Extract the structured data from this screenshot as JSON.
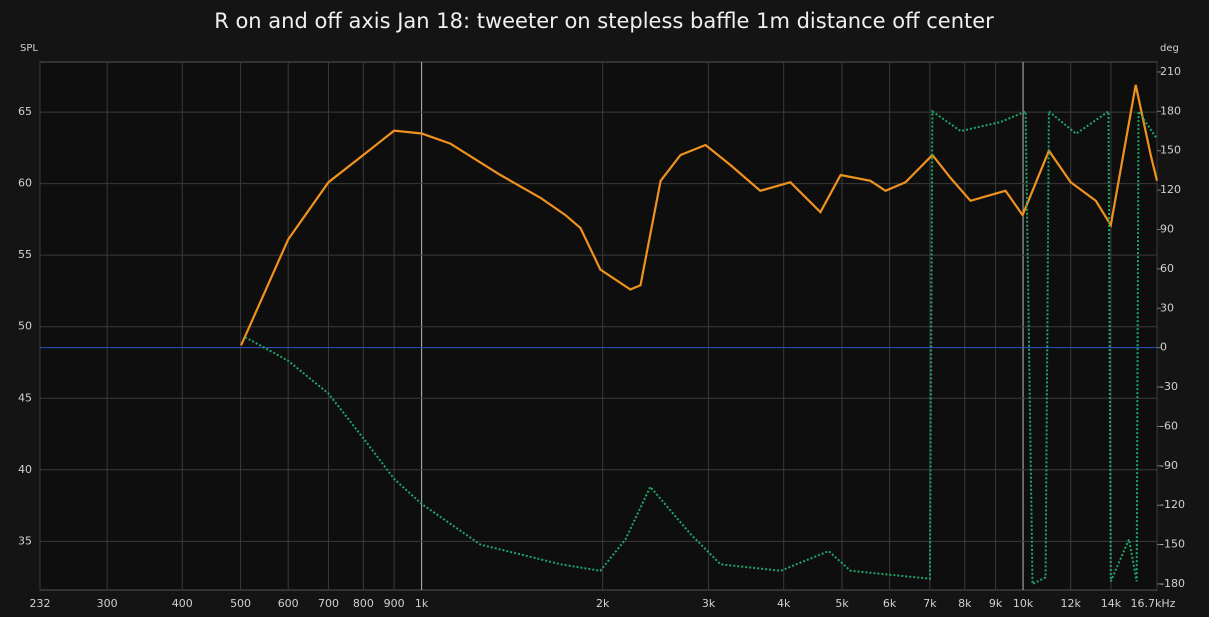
{
  "chart_data": {
    "type": "line",
    "title": "R on and off axis Jan 18: tweeter on stepless baffle 1m distance off center",
    "y_label": "SPL",
    "y2_label": "deg",
    "log_x": true,
    "grid": true,
    "xlim": [
      232,
      16700
    ],
    "xticks": [
      232,
      300,
      400,
      500,
      600,
      700,
      800,
      900,
      {
        "value": 1000,
        "label": "1k"
      },
      {
        "value": 2000,
        "label": "2k"
      },
      {
        "value": 3000,
        "label": "3k"
      },
      {
        "value": 4000,
        "label": "4k"
      },
      {
        "value": 5000,
        "label": "5k"
      },
      {
        "value": 6000,
        "label": "6k"
      },
      {
        "value": 7000,
        "label": "7k"
      },
      {
        "value": 8000,
        "label": "8k"
      },
      {
        "value": 9000,
        "label": "9k"
      },
      {
        "value": 10000,
        "label": "10k"
      },
      {
        "value": 12000,
        "label": "12k"
      },
      {
        "value": 14000,
        "label": "14k"
      },
      {
        "value": 16700,
        "label": "16.7kHz"
      }
    ],
    "ylim": [
      31.6,
      68.5
    ],
    "yticks": [
      35,
      40,
      45,
      50,
      55,
      60,
      65
    ],
    "y2lim": [
      -184.6,
      217.6
    ],
    "y2ticks": [
      -180,
      -150,
      -120,
      -90,
      -60,
      -30,
      0,
      30,
      60,
      90,
      120,
      150,
      180,
      210
    ],
    "series": [
      {
        "color": "#f0921e",
        "x": [
          501,
          600,
          700,
          800,
          900,
          1000,
          1116,
          1352,
          1577,
          1734,
          1837,
          1982,
          2224,
          2312,
          2497,
          2694,
          2965,
          3261,
          3657,
          4104,
          4604,
          4974,
          5575,
          5906,
          6378,
          7067,
          7574,
          8177,
          8826,
          9350,
          9983,
          11040,
          12000,
          13210,
          13990,
          15390,
          16300,
          16700
        ],
        "values": [
          48.7,
          56.1,
          60.1,
          62.0,
          63.7,
          63.5,
          62.8,
          60.6,
          59.0,
          57.8,
          56.9,
          54.0,
          52.6,
          52.9,
          60.2,
          62.0,
          62.7,
          61.3,
          59.5,
          60.1,
          58.0,
          60.6,
          60.2,
          59.5,
          60.1,
          62.0,
          60.4,
          58.8,
          59.2,
          59.5,
          57.8,
          62.3,
          60.1,
          58.8,
          57.1,
          66.9,
          62.0,
          60.2
        ]
      },
      {
        "color": "#1fa66a",
        "axis": "y2",
        "x": [
          509,
          600,
          700,
          800,
          900,
          1000,
          1253,
          1704,
          1982,
          2183,
          2400,
          2800,
          3140,
          3953,
          4752,
          5166,
          7000,
          7067,
          7875,
          9189,
          10100,
          10370,
          10900,
          11040,
          12250,
          13870,
          13990,
          15000,
          15450,
          15560,
          16700
        ],
        "values": [
          8,
          -10,
          -35,
          -69,
          -100,
          -119,
          -150,
          -165,
          -170,
          -146,
          -106,
          -142,
          -165,
          -170,
          -155,
          -170,
          -176,
          180,
          165,
          172,
          180,
          -180,
          -175,
          180,
          163,
          180,
          -178,
          -146,
          -178,
          180,
          159
        ]
      }
    ]
  }
}
